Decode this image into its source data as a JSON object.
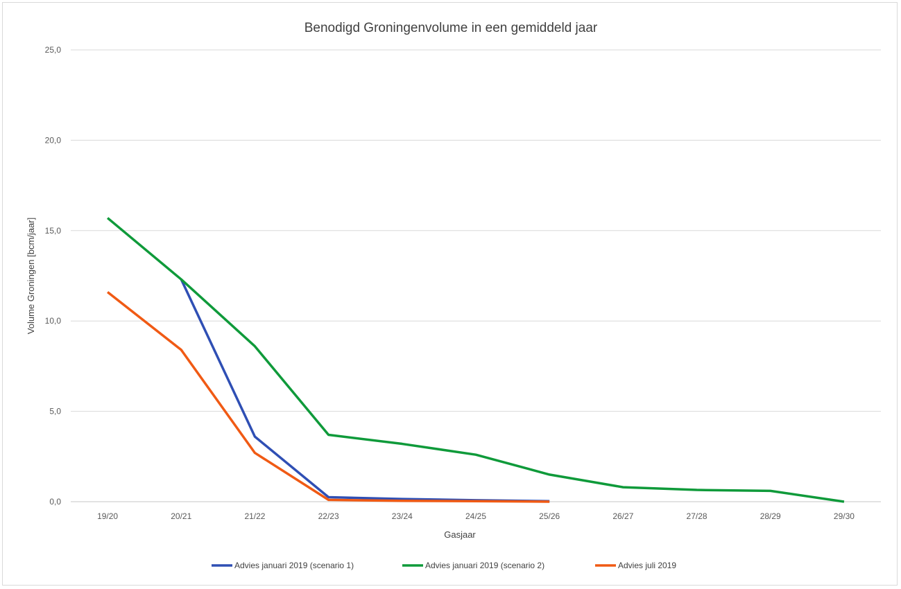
{
  "chart_data": {
    "type": "line",
    "title": "Benodigd Groningenvolume in een gemiddeld jaar",
    "xlabel": "Gasjaar",
    "ylabel": "Volume Groningen [bcm/jaar]",
    "ylim": [
      0,
      25
    ],
    "yticks": [
      "0,0",
      "5,0",
      "10,0",
      "15,0",
      "20,0",
      "25,0"
    ],
    "ytick_values": [
      0,
      5,
      10,
      15,
      20,
      25
    ],
    "grid": true,
    "legend_position": "bottom",
    "categories": [
      "19/20",
      "20/21",
      "21/22",
      "22/23",
      "23/24",
      "24/25",
      "25/26",
      "26/27",
      "27/28",
      "28/29",
      "29/30"
    ],
    "series": [
      {
        "name": "Advies januari 2019 (scenario 1)",
        "color": "#2f4fb4",
        "values": [
          null,
          12.3,
          3.6,
          0.25,
          0.15,
          0.08,
          0.03,
          null,
          null,
          null,
          null
        ]
      },
      {
        "name": "Advies januari 2019 (scenario 2)",
        "color": "#0f9a3a",
        "values": [
          15.7,
          12.3,
          8.6,
          3.7,
          3.2,
          2.6,
          1.5,
          0.8,
          0.65,
          0.6,
          0.0
        ]
      },
      {
        "name": "Advies juli 2019",
        "color": "#f05a14",
        "values": [
          11.6,
          8.4,
          2.7,
          0.1,
          0.05,
          0.03,
          0.0,
          null,
          null,
          null,
          null
        ]
      }
    ]
  }
}
